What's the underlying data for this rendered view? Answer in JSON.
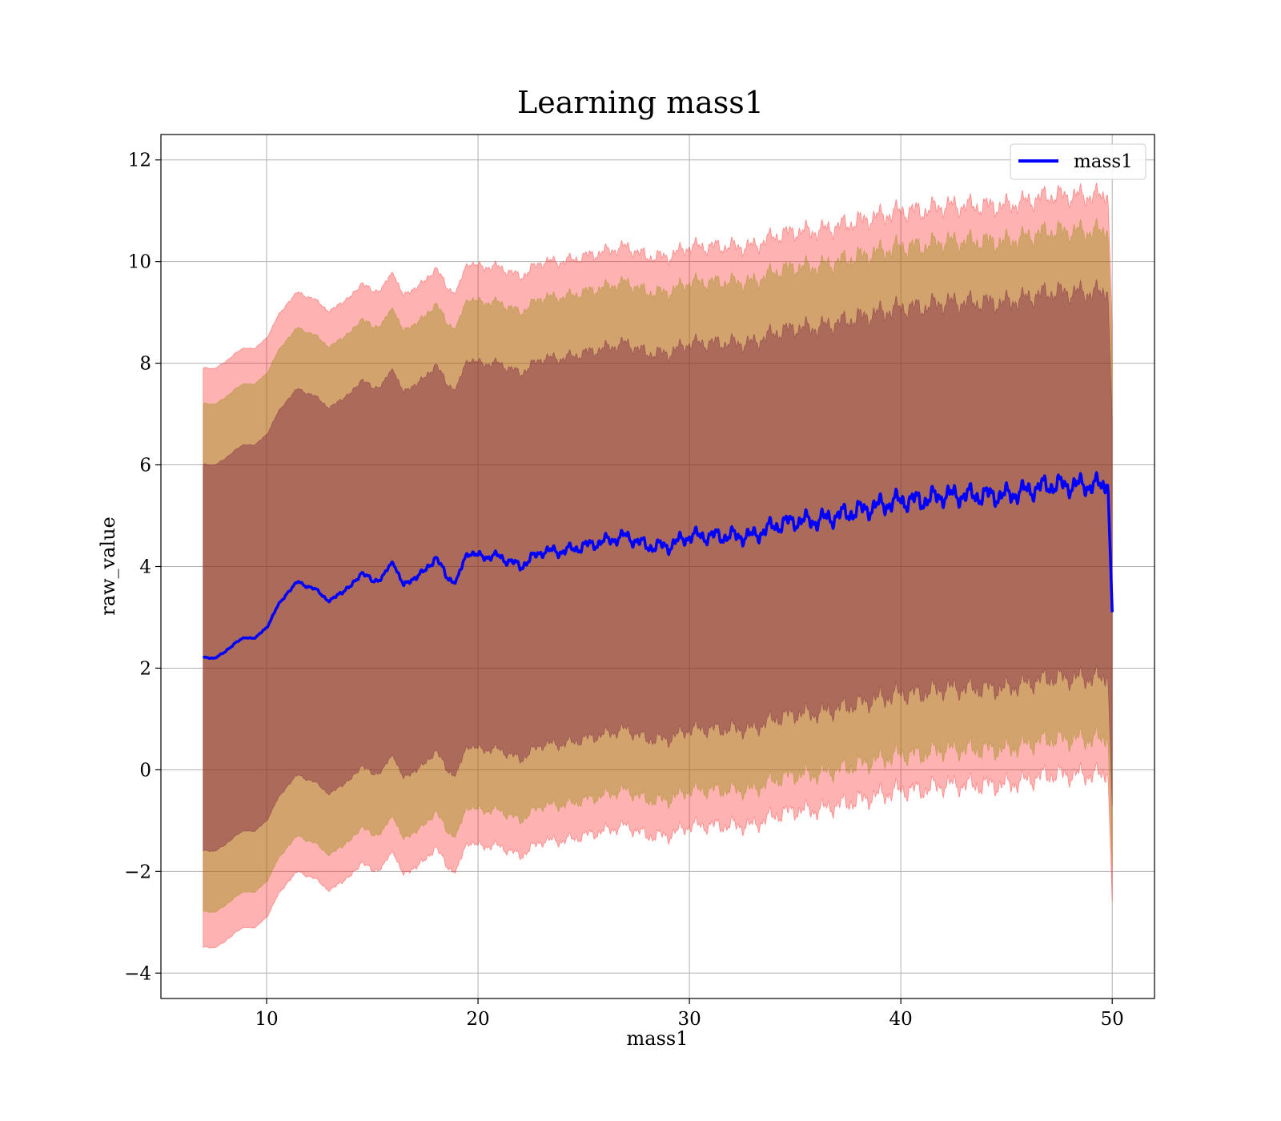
{
  "chart_data": {
    "type": "area",
    "title": "Learning mass1",
    "xlabel": "mass1",
    "ylabel": "raw_value",
    "xlim": [
      5,
      52
    ],
    "ylim": [
      -4.5,
      12.5
    ],
    "xticks": [
      10,
      20,
      30,
      40,
      50
    ],
    "yticks": [
      -4,
      -2,
      0,
      2,
      4,
      6,
      8,
      10,
      12
    ],
    "xtick_labels": [
      "10",
      "20",
      "30",
      "40",
      "50"
    ],
    "ytick_labels": [
      "−4",
      "−2",
      "0",
      "2",
      "4",
      "6",
      "8",
      "10",
      "12"
    ],
    "grid": true,
    "legend": {
      "placement": "top-right",
      "entries": [
        "mass1"
      ]
    },
    "colors": {
      "line": "#0000ff",
      "band_outer": "#ff0000",
      "band_middle": "#8b8b00",
      "band_inner": "#6b0f3a"
    },
    "series": [
      {
        "name": "mass1",
        "x": [
          7,
          7.5,
          8,
          8.5,
          9,
          9.5,
          10,
          10.5,
          11,
          11.5,
          12,
          12.5,
          13,
          13.5,
          14,
          14.5,
          15,
          15.5,
          16,
          16.5,
          17,
          17.5,
          18,
          18.5,
          19,
          19.5,
          20,
          21,
          22,
          23,
          24,
          25,
          26,
          27,
          28,
          29,
          30,
          31,
          32,
          33,
          34,
          35,
          36,
          37,
          38,
          39,
          40,
          41,
          42,
          43,
          44,
          45,
          46,
          47,
          48,
          49,
          49.8,
          50
        ],
        "y": [
          2.2,
          2.2,
          2.3,
          2.5,
          2.6,
          2.6,
          2.8,
          3.2,
          3.5,
          3.7,
          3.6,
          3.5,
          3.3,
          3.5,
          3.6,
          3.9,
          3.7,
          3.8,
          4.1,
          3.6,
          3.8,
          3.9,
          4.2,
          3.8,
          3.7,
          4.3,
          4.2,
          4.2,
          4.0,
          4.3,
          4.3,
          4.4,
          4.5,
          4.6,
          4.4,
          4.4,
          4.6,
          4.6,
          4.6,
          4.6,
          4.8,
          4.9,
          4.9,
          5.0,
          5.1,
          5.2,
          5.3,
          5.3,
          5.4,
          5.4,
          5.4,
          5.4,
          5.5,
          5.6,
          5.6,
          5.6,
          5.6,
          3.1
        ]
      }
    ],
    "bands": [
      {
        "lower_offset": -5.7,
        "upper_offset": 5.7
      },
      {
        "lower_offset": -5.0,
        "upper_offset": 5.0
      },
      {
        "lower_offset": -3.8,
        "upper_offset": 3.8
      }
    ]
  }
}
